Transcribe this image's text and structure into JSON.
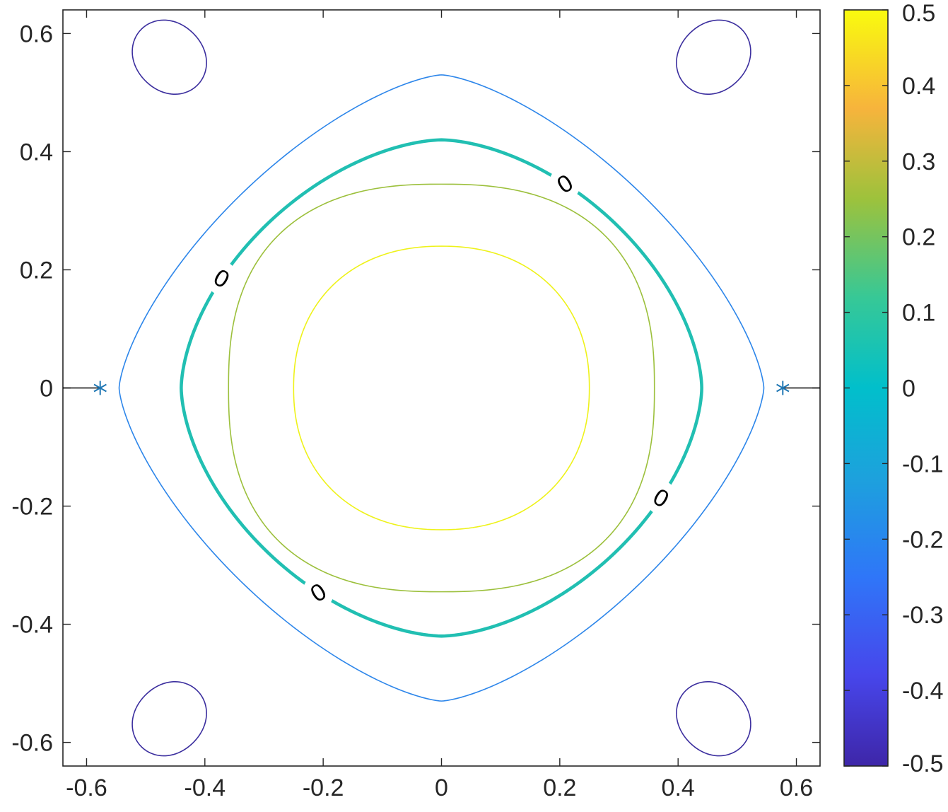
{
  "chart_data": {
    "type": "contour",
    "title": "",
    "xlabel": "",
    "ylabel": "",
    "xlim": [
      -0.64,
      0.64
    ],
    "ylim": [
      -0.64,
      0.64
    ],
    "grid": false,
    "x_ticks": [
      -0.6,
      -0.4,
      -0.2,
      0,
      0.2,
      0.4,
      0.6
    ],
    "x_tick_labels": [
      "-0.6",
      "-0.4",
      "-0.2",
      "0",
      "0.2",
      "0.4",
      "0.6"
    ],
    "y_ticks": [
      0.6,
      0.4,
      0.2,
      0,
      -0.2,
      -0.4,
      -0.6
    ],
    "y_tick_labels": [
      "0.6",
      "0.4",
      "0.2",
      "0",
      "-0.2",
      "-0.4",
      "-0.6"
    ],
    "colorbar": {
      "limits": [
        -0.5,
        0.5
      ],
      "ticks": [
        0.5,
        0.4,
        0.3,
        0.2,
        0.1,
        0,
        -0.1,
        -0.2,
        -0.3,
        -0.4,
        -0.5
      ],
      "tick_labels": [
        "0.5",
        "0.4",
        "0.3",
        "0.2",
        "0.1",
        "0",
        "-0.1",
        "-0.2",
        "-0.3",
        "-0.4",
        "-0.5"
      ],
      "colormap": "parula"
    },
    "contours": [
      {
        "level": 0.4,
        "color": "#eef21a",
        "shape": "closed",
        "center": [
          0,
          0
        ],
        "rx": 0.25,
        "ry": 0.24,
        "exponent": 2.2
      },
      {
        "level": 0.2,
        "color": "#9cc03c",
        "shape": "closed",
        "center": [
          0,
          0
        ],
        "rx": 0.36,
        "ry": 0.345,
        "exponent": 2.5
      },
      {
        "level": 0,
        "color": "#21bfb2",
        "shape": "closed",
        "center": [
          0,
          0
        ],
        "rx": 0.44,
        "ry": 0.42,
        "exponent": 1.7,
        "emphasized": true,
        "labels": [
          "0",
          "0",
          "0",
          "0"
        ]
      },
      {
        "level": -0.1,
        "color": "#2d86ea",
        "shape": "closed",
        "center": [
          0,
          0
        ],
        "rx": 0.545,
        "ry": 0.53,
        "exponent": 1.45
      },
      {
        "level": -0.45,
        "color": "#3b2e9e",
        "shape": "closed",
        "center": [
          -0.46,
          0.56
        ],
        "rx": 0.062,
        "ry": 0.062
      },
      {
        "level": -0.45,
        "color": "#3b2e9e",
        "shape": "closed",
        "center": [
          0.46,
          0.56
        ],
        "rx": 0.062,
        "ry": 0.062
      },
      {
        "level": -0.45,
        "color": "#3b2e9e",
        "shape": "closed",
        "center": [
          -0.46,
          -0.56
        ],
        "rx": 0.062,
        "ry": 0.062
      },
      {
        "level": -0.45,
        "color": "#3b2e9e",
        "shape": "closed",
        "center": [
          0.46,
          -0.56
        ],
        "rx": 0.062,
        "ry": 0.062
      }
    ],
    "markers": [
      {
        "x": -0.577,
        "y": 0,
        "symbol": "*",
        "color": "#1f77b4"
      },
      {
        "x": 0.577,
        "y": 0,
        "symbol": "*",
        "color": "#1f77b4"
      }
    ],
    "lines": [
      {
        "x": [
          -0.64,
          -0.577
        ],
        "y": [
          0,
          0
        ],
        "color": "#000000"
      },
      {
        "x": [
          0.577,
          0.64
        ],
        "y": [
          0,
          0
        ],
        "color": "#000000"
      }
    ]
  }
}
